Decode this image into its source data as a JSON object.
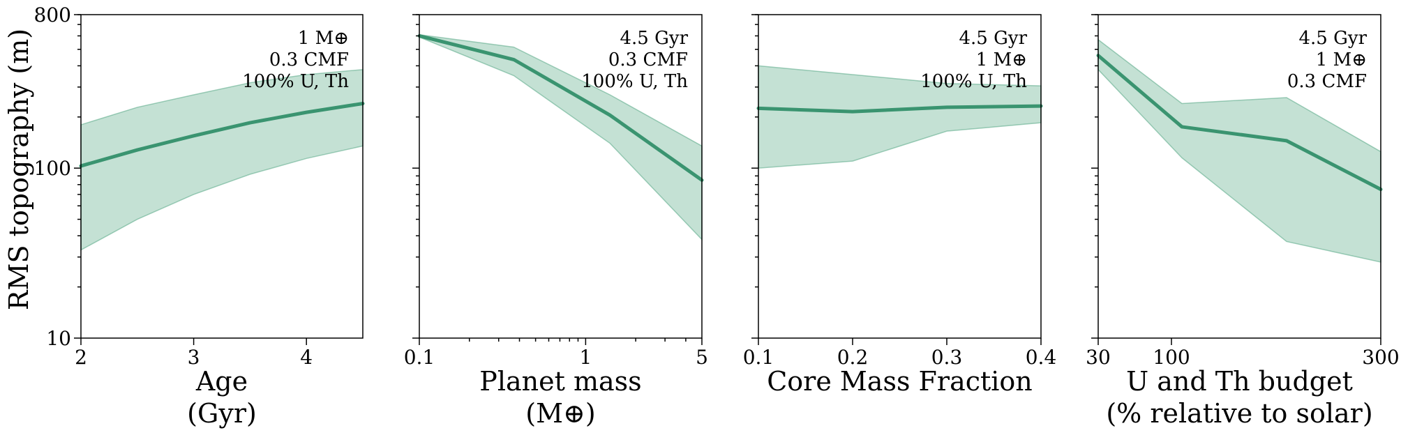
{
  "figure": {
    "ylabel": "RMS topography (m)"
  },
  "chart_data": [
    {
      "type": "area",
      "xscale": "linear",
      "yscale": "log",
      "xlim": [
        2,
        4.5
      ],
      "ylim": [
        10,
        800
      ],
      "xticks": [
        2,
        3,
        4
      ],
      "xtick_labels": [
        "2",
        "3",
        "4"
      ],
      "yticks": [
        10,
        100,
        800
      ],
      "ytick_labels": [
        "10",
        "100",
        "800"
      ],
      "xlabel_line1": "Age",
      "xlabel_line2": "(Gyr)",
      "annotation": [
        "1 M⊕",
        "0.3 CMF",
        "100% U, Th"
      ],
      "x": [
        2,
        2.5,
        3,
        3.5,
        4,
        4.5
      ],
      "median": [
        103,
        128,
        155,
        185,
        213,
        240
      ],
      "upper": [
        180,
        228,
        270,
        318,
        355,
        380
      ],
      "lower": [
        33,
        50,
        70,
        92,
        114,
        135
      ]
    },
    {
      "type": "area",
      "xscale": "log",
      "yscale": "log",
      "xlim": [
        0.1,
        5
      ],
      "ylim": [
        10,
        800
      ],
      "xticks": [
        0.1,
        1,
        5
      ],
      "xtick_labels": [
        "0.1",
        "1",
        "5"
      ],
      "yticks": [
        10,
        100,
        800
      ],
      "ytick_labels": [
        "",
        "",
        ""
      ],
      "xlabel_line1": "Planet mass",
      "xlabel_line2": "(M⊕)",
      "annotation": [
        "4.5 Gyr",
        "0.3 CMF",
        "100% U, Th"
      ],
      "x": [
        0.1,
        0.37,
        1.4,
        5
      ],
      "median": [
        600,
        435,
        205,
        85
      ],
      "upper": [
        610,
        515,
        270,
        135
      ],
      "lower": [
        590,
        350,
        140,
        38
      ]
    },
    {
      "type": "area",
      "xscale": "linear",
      "yscale": "log",
      "xlim": [
        0.1,
        0.4
      ],
      "ylim": [
        10,
        800
      ],
      "xticks": [
        0.1,
        0.2,
        0.3,
        0.4
      ],
      "xtick_labels": [
        "0.1",
        "0.2",
        "0.3",
        "0.4"
      ],
      "yticks": [
        10,
        100,
        800
      ],
      "ytick_labels": [
        "",
        "",
        ""
      ],
      "xlabel_line1": "Core Mass Fraction",
      "xlabel_line2": "",
      "annotation": [
        "4.5 Gyr",
        "1 M⊕",
        "100% U, Th"
      ],
      "x": [
        0.1,
        0.2,
        0.3,
        0.4
      ],
      "median": [
        225,
        215,
        228,
        232
      ],
      "upper": [
        400,
        355,
        315,
        305
      ],
      "lower": [
        100,
        110,
        165,
        185
      ]
    },
    {
      "type": "area",
      "xscale": "linear",
      "yscale": "log",
      "xlim": [
        30,
        300
      ],
      "ylim": [
        10,
        800
      ],
      "xticks": [
        30,
        100,
        300
      ],
      "xtick_labels": [
        "30",
        "100",
        "300"
      ],
      "yticks": [
        10,
        100,
        800
      ],
      "ytick_labels": [
        "",
        "",
        ""
      ],
      "xlabel_line1": "U and Th budget",
      "xlabel_line2": "(% relative to solar)",
      "annotation": [
        "4.5 Gyr",
        "1 M⊕",
        "0.3 CMF"
      ],
      "x": [
        30,
        110,
        210,
        300
      ],
      "median": [
        460,
        175,
        145,
        75
      ],
      "upper": [
        570,
        240,
        260,
        125
      ],
      "lower": [
        380,
        115,
        37,
        28
      ]
    }
  ]
}
